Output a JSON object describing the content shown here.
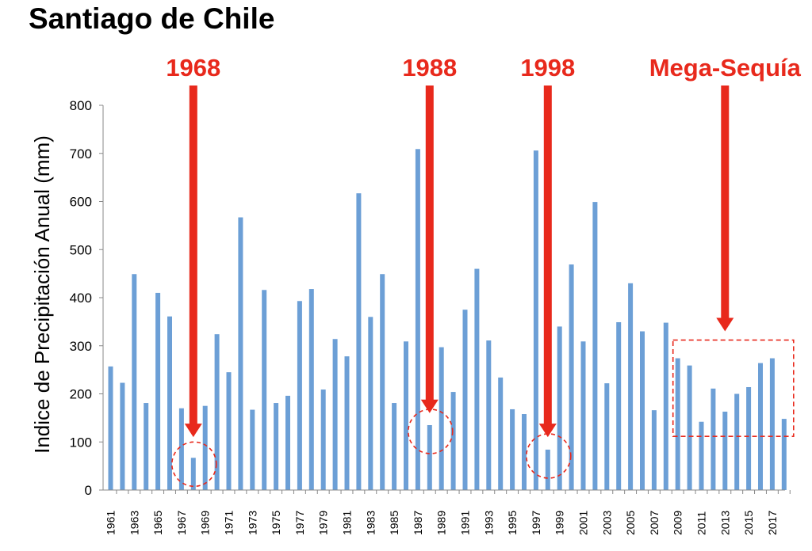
{
  "chart_data": {
    "type": "bar",
    "title": "Santiago de Chile",
    "xlabel": "",
    "ylabel": "Indice de Precipitación Anual (mm)",
    "ylim": [
      0,
      800
    ],
    "yticks": [
      0,
      100,
      200,
      300,
      400,
      500,
      600,
      700,
      800
    ],
    "categories": [
      "1961",
      "1962",
      "1963",
      "1964",
      "1965",
      "1966",
      "1967",
      "1968",
      "1969",
      "1970",
      "1971",
      "1972",
      "1973",
      "1974",
      "1975",
      "1976",
      "1977",
      "1978",
      "1979",
      "1980",
      "1981",
      "1982",
      "1983",
      "1984",
      "1985",
      "1986",
      "1987",
      "1988",
      "1989",
      "1990",
      "1991",
      "1992",
      "1993",
      "1994",
      "1995",
      "1996",
      "1997",
      "1998",
      "1999",
      "2000",
      "2001",
      "2002",
      "2003",
      "2004",
      "2005",
      "2006",
      "2007",
      "2008",
      "2009",
      "2010",
      "2011",
      "2012",
      "2013",
      "2014",
      "2015",
      "2016",
      "2017",
      "2018"
    ],
    "tick_labels": [
      "1961",
      "1963",
      "1965",
      "1967",
      "1969",
      "1971",
      "1973",
      "1975",
      "1977",
      "1979",
      "1981",
      "1983",
      "1985",
      "1987",
      "1989",
      "1991",
      "1993",
      "1995",
      "1997",
      "1999",
      "2001",
      "2003",
      "2005",
      "2007",
      "2009",
      "2011",
      "2013",
      "2015",
      "2017"
    ],
    "values": [
      257,
      223,
      449,
      181,
      410,
      361,
      170,
      67,
      175,
      324,
      245,
      567,
      167,
      416,
      181,
      196,
      393,
      418,
      209,
      314,
      278,
      617,
      360,
      449,
      181,
      309,
      709,
      135,
      297,
      204,
      375,
      460,
      311,
      234,
      168,
      158,
      706,
      84,
      340,
      469,
      309,
      599,
      222,
      349,
      430,
      330,
      166,
      348,
      274,
      259,
      142,
      211,
      163,
      200,
      214,
      264,
      274,
      148
    ],
    "color": "#6c9fd6",
    "annotations": [
      {
        "label": "1968",
        "year": "1968",
        "arrow_to": 110,
        "marker": "circle",
        "color": "#e8291c"
      },
      {
        "label": "1988",
        "year": "1988",
        "arrow_to": 160,
        "marker": "circle",
        "color": "#e8291c"
      },
      {
        "label": "1998",
        "year": "1998",
        "arrow_to": 110,
        "marker": "circle",
        "color": "#e8291c"
      },
      {
        "label": "Mega-Sequía",
        "year": "2013",
        "arrow_to": 330,
        "marker": "box",
        "box_from": "2009",
        "box_to": "2018",
        "box_range": [
          110,
          330
        ],
        "color": "#e8291c"
      }
    ]
  }
}
